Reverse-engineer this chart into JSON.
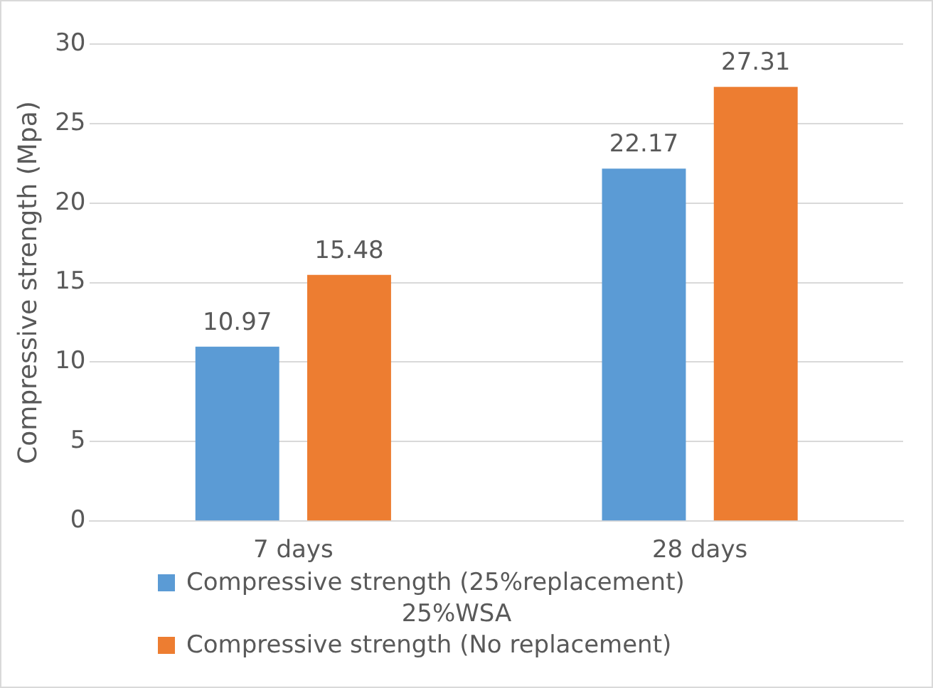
{
  "chart_data": {
    "type": "bar",
    "ylabel": "Compressive strength (Mpa)",
    "xlabel": "25%WSA",
    "categories": [
      "7 days",
      "28 days"
    ],
    "series": [
      {
        "name": "Compressive  strength (25%replacement)",
        "color": "#5b9bd5",
        "values": [
          10.97,
          22.17
        ]
      },
      {
        "name": "Compressive  strength (No replacement)",
        "color": "#ed7d31",
        "values": [
          15.48,
          27.31
        ]
      }
    ],
    "ylim": [
      0,
      30
    ],
    "yticks": [
      0,
      5,
      10,
      15,
      20,
      25,
      30
    ],
    "grid": "y",
    "legend": "bottom",
    "data_labels": true
  }
}
